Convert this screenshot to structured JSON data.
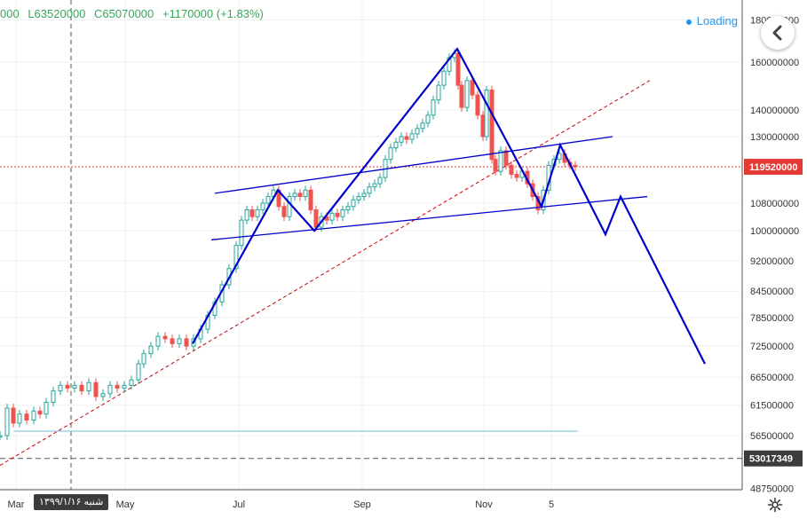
{
  "header": {
    "open_fragment": "000",
    "low": "L63520000",
    "close": "C65070000",
    "change": "+1170000 (+1.83%)",
    "loading_label": "Loading"
  },
  "date_badge": "شنبه ۱۳۹۹/۱/۱۶",
  "chart_data": {
    "type": "candlestick",
    "x_ticks": [
      "Mar",
      "May",
      "Jul",
      "Sep",
      "Nov",
      "5"
    ],
    "y_ticks": [
      48750000,
      56500000,
      61500000,
      66500000,
      72500000,
      78500000,
      84500000,
      92000000,
      100000000,
      108000000,
      130000000,
      140000000,
      160000000,
      180000000
    ],
    "y_scale": "log",
    "ylim": [
      47500000,
      182000000
    ],
    "current_price_label": "119520000",
    "dashed_level_label": "53017349",
    "current_price": 119520000,
    "dashed_level": 53017349,
    "colors": {
      "up": "#26a69a",
      "down": "#ef5350",
      "pattern": "#0000cc",
      "trendline": "#cc0000",
      "axis": "#333333",
      "grid": "#eef0f3"
    },
    "candles_approx": [
      [
        0,
        56500000
      ],
      [
        8,
        61000000
      ],
      [
        15,
        58500000
      ],
      [
        22,
        60000000
      ],
      [
        30,
        59000000
      ],
      [
        38,
        60500000
      ],
      [
        45,
        60000000
      ],
      [
        52,
        62000000
      ],
      [
        60,
        64000000
      ],
      [
        68,
        65000000
      ],
      [
        76,
        64500000
      ],
      [
        84,
        65000000
      ],
      [
        92,
        64000000
      ],
      [
        100,
        65500000
      ],
      [
        108,
        63000000
      ],
      [
        116,
        63500000
      ],
      [
        124,
        65000000
      ],
      [
        132,
        64500000
      ],
      [
        140,
        65000000
      ],
      [
        148,
        66000000
      ],
      [
        156,
        69000000
      ],
      [
        162,
        71000000
      ],
      [
        170,
        72500000
      ],
      [
        178,
        74500000
      ],
      [
        186,
        74000000
      ],
      [
        194,
        73000000
      ],
      [
        202,
        74000000
      ],
      [
        210,
        72500000
      ],
      [
        218,
        74000000
      ],
      [
        226,
        76000000
      ],
      [
        234,
        79000000
      ],
      [
        242,
        82000000
      ],
      [
        250,
        86000000
      ],
      [
        258,
        90000000
      ],
      [
        266,
        96000000
      ],
      [
        272,
        103000000
      ],
      [
        278,
        106000000
      ],
      [
        284,
        104000000
      ],
      [
        290,
        106000000
      ],
      [
        296,
        108000000
      ],
      [
        302,
        110000000
      ],
      [
        308,
        112000000
      ],
      [
        314,
        107000000
      ],
      [
        320,
        104000000
      ],
      [
        326,
        110000000
      ],
      [
        332,
        111000000
      ],
      [
        338,
        110000000
      ],
      [
        344,
        112000000
      ],
      [
        350,
        106000000
      ],
      [
        356,
        101000000
      ],
      [
        362,
        104000000
      ],
      [
        368,
        103000000
      ],
      [
        374,
        105000000
      ],
      [
        380,
        104000000
      ],
      [
        386,
        106000000
      ],
      [
        392,
        107000000
      ],
      [
        398,
        109000000
      ],
      [
        404,
        110000000
      ],
      [
        410,
        111000000
      ],
      [
        416,
        113000000
      ],
      [
        422,
        114000000
      ],
      [
        428,
        116000000
      ],
      [
        434,
        122000000
      ],
      [
        440,
        126000000
      ],
      [
        446,
        128000000
      ],
      [
        452,
        130000000
      ],
      [
        458,
        129000000
      ],
      [
        464,
        131000000
      ],
      [
        470,
        133000000
      ],
      [
        476,
        135000000
      ],
      [
        482,
        138000000
      ],
      [
        488,
        144000000
      ],
      [
        494,
        150000000
      ],
      [
        500,
        156000000
      ],
      [
        506,
        162000000
      ],
      [
        512,
        164000000
      ],
      [
        516,
        150000000
      ],
      [
        520,
        141000000
      ],
      [
        526,
        152000000
      ],
      [
        532,
        146000000
      ],
      [
        538,
        138000000
      ],
      [
        544,
        130000000
      ],
      [
        548,
        148000000
      ],
      [
        554,
        122000000
      ],
      [
        558,
        118000000
      ],
      [
        564,
        125000000
      ],
      [
        570,
        120000000
      ],
      [
        576,
        117000000
      ],
      [
        582,
        116000000
      ],
      [
        588,
        118000000
      ],
      [
        594,
        114000000
      ],
      [
        600,
        110000000
      ],
      [
        606,
        106000000
      ],
      [
        612,
        112000000
      ],
      [
        618,
        120000000
      ],
      [
        624,
        122000000
      ],
      [
        630,
        124000000
      ],
      [
        636,
        121000000
      ],
      [
        642,
        120000000
      ],
      [
        648,
        119500000
      ]
    ],
    "pattern_lines": {
      "zigzag": [
        [
          217,
          73000000
        ],
        [
          313,
          112000000
        ],
        [
          354,
          100000000
        ],
        [
          515,
          166000000
        ],
        [
          610,
          107000000
        ],
        [
          631,
          127000000
        ],
        [
          682,
          99000000
        ],
        [
          699,
          110000000
        ],
        [
          794,
          69000000
        ]
      ],
      "channel_upper": [
        [
          242,
          111000000
        ],
        [
          690,
          130000000
        ]
      ],
      "channel_lower": [
        [
          238,
          97500000
        ],
        [
          729,
          110000000
        ]
      ],
      "red_trendline": [
        [
          0,
          52000000
        ],
        [
          732,
          152000000
        ]
      ]
    },
    "support_line": {
      "from": 15,
      "to": 651,
      "value": 57200000
    },
    "crosshair_x": 80
  },
  "icons": {
    "back": "chevron-left-icon",
    "settings": "gear-icon",
    "loading": "loading-dot-icon"
  }
}
